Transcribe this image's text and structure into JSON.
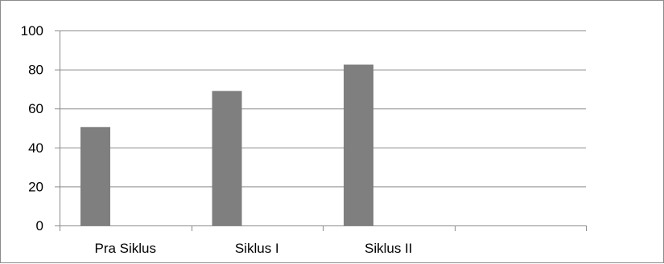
{
  "chart_data": {
    "type": "bar",
    "title": "",
    "xlabel": "",
    "ylabel": "",
    "categories": [
      "Pra Siklus",
      "Siklus I",
      "Siklus II",
      ""
    ],
    "values": [
      50.5,
      69,
      82.5,
      null
    ],
    "ylim": [
      0,
      100
    ],
    "yticks": [
      0,
      20,
      40,
      60,
      80,
      100
    ],
    "ytick_labels": [
      "0",
      "20",
      "40",
      "60",
      "80",
      "100"
    ],
    "grid": true,
    "legend": "none",
    "bar_color": "#7f7f7f"
  }
}
